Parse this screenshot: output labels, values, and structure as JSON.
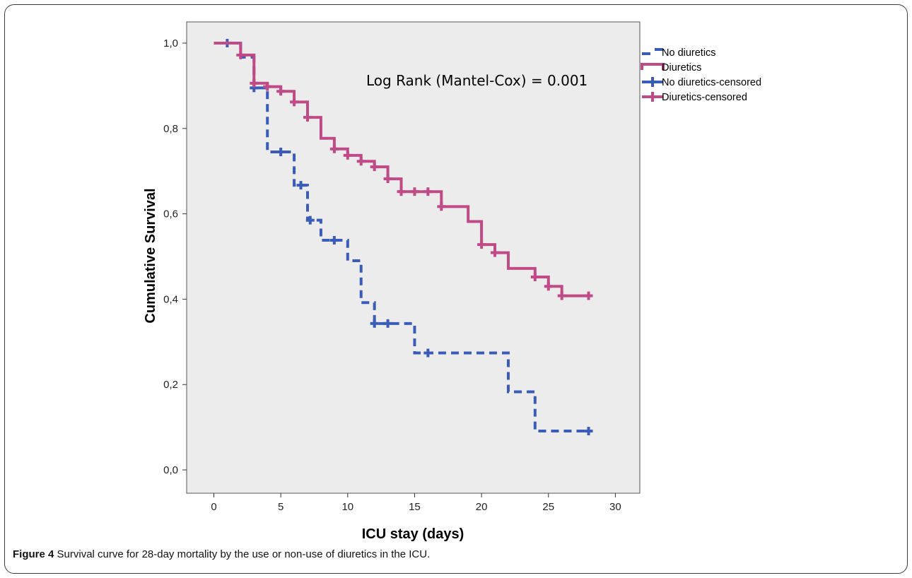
{
  "caption": {
    "label": "Figure 4",
    "text": " Survival curve for 28-day mortality by the use or non-use of diuretics in the ICU."
  },
  "chart_data": {
    "type": "line",
    "title": "",
    "xlabel": "ICU stay (days)",
    "ylabel": "Cumulative Survival",
    "xlim": [
      -2,
      31
    ],
    "ylim": [
      -0.05,
      1.05
    ],
    "xticks": [
      0,
      5,
      10,
      15,
      20,
      25,
      30
    ],
    "yticks": [
      0.0,
      0.2,
      0.4,
      0.6,
      0.8,
      1.0
    ],
    "xtick_labels": [
      "0",
      "5",
      "10",
      "15",
      "20",
      "25",
      "30"
    ],
    "ytick_labels": [
      "0,0",
      "0,2",
      "0,4",
      "0,6",
      "0,8",
      "1,0"
    ],
    "grid": false,
    "plot_background": "#ececec",
    "annotation": "Log Rank (Mantel-Cox) = 0.001",
    "legend": {
      "position": "right",
      "entries": [
        {
          "label": "No diuretics",
          "style": "dashed",
          "color": "#3a5cb8"
        },
        {
          "label": "Diuretics",
          "style": "solid",
          "color": "#c04a86"
        },
        {
          "label": "No diuretics-censored",
          "style": "censor",
          "color": "#3a5cb8"
        },
        {
          "label": "Diuretics-censored",
          "style": "censor",
          "color": "#c04a86"
        }
      ]
    },
    "series": [
      {
        "name": "No diuretics",
        "style": "dashed",
        "color": "#3a5cb8",
        "steps": [
          [
            0,
            1.0
          ],
          [
            2,
            0.967
          ],
          [
            3,
            0.895
          ],
          [
            4,
            0.745
          ],
          [
            6,
            0.667
          ],
          [
            7,
            0.585
          ],
          [
            8,
            0.538
          ],
          [
            10,
            0.49
          ],
          [
            11,
            0.392
          ],
          [
            12,
            0.343
          ],
          [
            15,
            0.274
          ],
          [
            22,
            0.183
          ],
          [
            24,
            0.091
          ],
          [
            28,
            0.091
          ]
        ],
        "censored": [
          [
            1,
            1.0
          ],
          [
            3,
            0.895
          ],
          [
            5,
            0.745
          ],
          [
            6.5,
            0.667
          ],
          [
            7.2,
            0.585
          ],
          [
            9,
            0.538
          ],
          [
            12,
            0.343
          ],
          [
            13,
            0.343
          ],
          [
            16,
            0.274
          ],
          [
            28,
            0.091
          ]
        ]
      },
      {
        "name": "Diuretics",
        "style": "solid",
        "color": "#c04a86",
        "steps": [
          [
            0,
            1.0
          ],
          [
            2,
            0.972
          ],
          [
            3,
            0.906
          ],
          [
            4,
            0.898
          ],
          [
            5,
            0.887
          ],
          [
            6,
            0.862
          ],
          [
            7,
            0.826
          ],
          [
            8,
            0.777
          ],
          [
            9,
            0.752
          ],
          [
            10,
            0.737
          ],
          [
            11,
            0.723
          ],
          [
            12,
            0.71
          ],
          [
            13,
            0.682
          ],
          [
            14,
            0.652
          ],
          [
            17,
            0.617
          ],
          [
            19,
            0.582
          ],
          [
            20,
            0.528
          ],
          [
            21,
            0.509
          ],
          [
            22,
            0.472
          ],
          [
            24,
            0.452
          ],
          [
            25,
            0.43
          ],
          [
            26,
            0.408
          ],
          [
            28,
            0.408
          ]
        ],
        "censored": [
          [
            2,
            0.972
          ],
          [
            3,
            0.906
          ],
          [
            4,
            0.898
          ],
          [
            5,
            0.887
          ],
          [
            6,
            0.862
          ],
          [
            7,
            0.826
          ],
          [
            9,
            0.752
          ],
          [
            10,
            0.737
          ],
          [
            11,
            0.723
          ],
          [
            12,
            0.71
          ],
          [
            13,
            0.682
          ],
          [
            14,
            0.652
          ],
          [
            15,
            0.652
          ],
          [
            16,
            0.652
          ],
          [
            17,
            0.617
          ],
          [
            20,
            0.528
          ],
          [
            21,
            0.509
          ],
          [
            24,
            0.452
          ],
          [
            25,
            0.43
          ],
          [
            26,
            0.408
          ],
          [
            28,
            0.408
          ]
        ]
      }
    ]
  }
}
